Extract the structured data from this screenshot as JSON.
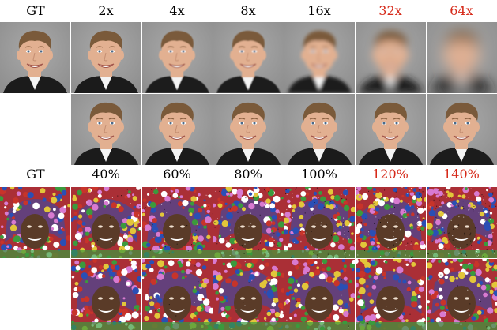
{
  "face_section": {
    "header_labels": [
      "GT",
      "2x",
      "4x",
      "8x",
      "16x",
      "32x",
      "64x"
    ],
    "header_label_colors": [
      "#000000",
      "#000000",
      "#000000",
      "#000000",
      "#000000",
      "#d62a1a",
      "#d62a1a"
    ],
    "row1_blur_levels": [
      0,
      0,
      0.4,
      0.8,
      2.2,
      5.0,
      8.5
    ],
    "row2_blur_levels": [
      0,
      0,
      0,
      0,
      0,
      0.3
    ]
  },
  "texture_section": {
    "header_labels": [
      "GT",
      "40%",
      "60%",
      "80%",
      "100%",
      "120%",
      "140%"
    ],
    "header_label_colors": [
      "#000000",
      "#000000",
      "#000000",
      "#000000",
      "#000000",
      "#d62a1a",
      "#d62a1a"
    ],
    "row1_noise_levels": [
      0,
      0.15,
      0.25,
      0.35,
      0.5,
      0.65,
      0.8
    ],
    "row2_noise_levels": [
      0,
      0.05,
      0.05,
      0.05,
      0.05,
      0.1
    ]
  },
  "colors": {
    "face_background": "#8f8f8f",
    "skin": "#e2b091",
    "hair": "#7a5a3a",
    "suit": "#1b1b1b",
    "shirt": "#f4f4f4",
    "texture_red": "#c8342a",
    "texture_blue": "#2a4fb5",
    "texture_green": "#3b9a3d",
    "texture_yellow": "#e2c63a",
    "texture_skin": "#5a3b28",
    "accent_red": "#d62a1a"
  }
}
